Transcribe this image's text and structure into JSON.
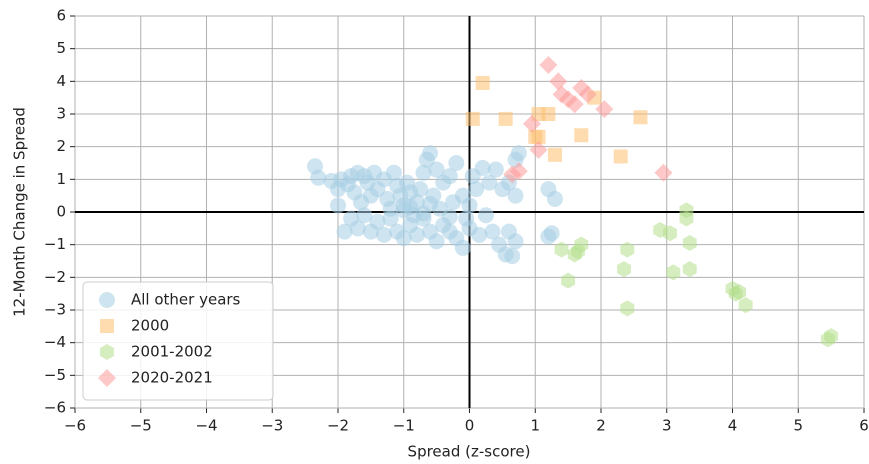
{
  "chart_data": {
    "type": "scatter",
    "x_label": "Spread (z-score)",
    "y_label": "12-Month Change in Spread",
    "xlim": [
      -6,
      6
    ],
    "ylim": [
      -6,
      6
    ],
    "xticks": [
      {
        "value": -6,
        "label": "−6"
      },
      {
        "value": -5,
        "label": "−5"
      },
      {
        "value": -4,
        "label": "−4"
      },
      {
        "value": -3,
        "label": "−3"
      },
      {
        "value": -2,
        "label": "−2"
      },
      {
        "value": -1,
        "label": "−1"
      },
      0,
      1,
      2,
      3,
      4,
      5,
      6
    ],
    "yticks": [
      {
        "value": -6,
        "label": "−6"
      },
      {
        "value": -5,
        "label": "−5"
      },
      {
        "value": -4,
        "label": "−4"
      },
      {
        "value": -3,
        "label": "−3"
      },
      {
        "value": -2,
        "label": "−2"
      },
      {
        "value": -1,
        "label": "−1"
      },
      0,
      1,
      2,
      3,
      4,
      5,
      6
    ],
    "grid": true,
    "legend": "lower left",
    "series": [
      {
        "name": "All other years",
        "color": "#a6cee3",
        "marker": "circle",
        "x": [
          -2.35,
          -2.3,
          -2.1,
          -2.0,
          -1.95,
          -1.85,
          -1.8,
          -1.75,
          -1.7,
          -1.65,
          -1.6,
          -1.55,
          -1.5,
          -1.45,
          -1.4,
          -1.3,
          -1.25,
          -1.15,
          -1.1,
          -1.05,
          -1.0,
          -0.95,
          -0.9,
          -0.85,
          -0.8,
          -0.75,
          -0.7,
          -0.65,
          -0.6,
          -0.55,
          -0.5,
          -0.45,
          -0.4,
          -0.3,
          -0.25,
          -0.2,
          -0.1,
          -0.05,
          0.05,
          0.1,
          0.2,
          0.3,
          0.4,
          0.5,
          0.6,
          0.7,
          0.75,
          0.7,
          1.2,
          1.3,
          -1.9,
          -1.8,
          -1.7,
          -1.6,
          -1.5,
          -1.4,
          -1.3,
          -1.2,
          -1.1,
          -1.0,
          -0.9,
          -0.8,
          -0.7,
          -0.6,
          -0.5,
          -0.4,
          -0.3,
          -0.2,
          -0.1,
          0.0,
          0.15,
          0.25,
          0.35,
          0.45,
          0.55,
          0.65,
          0.7,
          0.6,
          1.2,
          1.25,
          -1.2,
          -1.0,
          -0.9,
          -0.7,
          -0.6,
          -0.3,
          0.0,
          -2.0
        ],
        "values": [
          1.4,
          1.05,
          0.95,
          0.7,
          1.0,
          0.85,
          1.1,
          0.6,
          1.2,
          0.3,
          1.1,
          0.9,
          0.5,
          1.2,
          0.7,
          1.0,
          0.4,
          1.2,
          0.8,
          0.5,
          0.2,
          0.9,
          0.6,
          -0.1,
          0.3,
          0.7,
          1.2,
          1.6,
          1.8,
          0.5,
          1.3,
          0.1,
          0.9,
          1.1,
          0.3,
          1.5,
          0.5,
          -0.2,
          1.1,
          0.7,
          1.35,
          0.9,
          1.3,
          0.7,
          0.9,
          1.6,
          1.8,
          0.5,
          0.7,
          0.4,
          -0.6,
          -0.2,
          -0.5,
          -0.1,
          -0.6,
          -0.3,
          -0.7,
          -0.2,
          -0.6,
          -0.8,
          -0.4,
          -0.7,
          -0.2,
          -0.6,
          -0.9,
          -0.4,
          -0.6,
          -0.8,
          -1.1,
          -0.5,
          -0.7,
          -0.1,
          -0.6,
          -1.0,
          -1.3,
          -1.35,
          -0.9,
          -0.6,
          -0.75,
          -0.65,
          0.1,
          0.05,
          0.15,
          -0.05,
          0.25,
          -0.15,
          0.2,
          0.2
        ]
      },
      {
        "name": "2000",
        "color": "#fdbf6f",
        "marker": "square",
        "x": [
          0.2,
          0.05,
          0.55,
          1.05,
          1.2,
          1.05,
          1.0,
          1.3,
          1.7,
          1.9,
          2.3,
          2.6
        ],
        "values": [
          3.95,
          2.85,
          2.85,
          3.0,
          3.0,
          2.3,
          2.3,
          1.75,
          2.35,
          3.5,
          1.7,
          2.9
        ]
      },
      {
        "name": "2001-2002",
        "color": "#b2df8a",
        "marker": "hexagon",
        "x": [
          1.4,
          1.6,
          1.7,
          1.65,
          1.5,
          2.4,
          2.35,
          2.4,
          2.9,
          3.05,
          3.1,
          3.3,
          3.3,
          3.35,
          3.35,
          4.0,
          4.05,
          4.1,
          4.2,
          5.45,
          5.5
        ],
        "values": [
          -1.15,
          -1.3,
          -1.0,
          -1.2,
          -2.1,
          -1.15,
          -1.75,
          -2.95,
          -0.55,
          -0.65,
          -1.85,
          0.05,
          -0.2,
          -0.95,
          -1.75,
          -2.35,
          -2.5,
          -2.45,
          -2.85,
          -3.9,
          -3.8
        ]
      },
      {
        "name": "2020-2021",
        "color": "#fb9a99",
        "marker": "diamond",
        "x": [
          1.2,
          1.35,
          1.4,
          1.5,
          1.6,
          1.7,
          1.8,
          2.05,
          0.95,
          1.05,
          0.65,
          0.75,
          2.95
        ],
        "values": [
          4.5,
          4.0,
          3.6,
          3.45,
          3.3,
          3.8,
          3.6,
          3.15,
          2.7,
          1.9,
          1.15,
          1.25,
          1.2
        ]
      }
    ]
  }
}
